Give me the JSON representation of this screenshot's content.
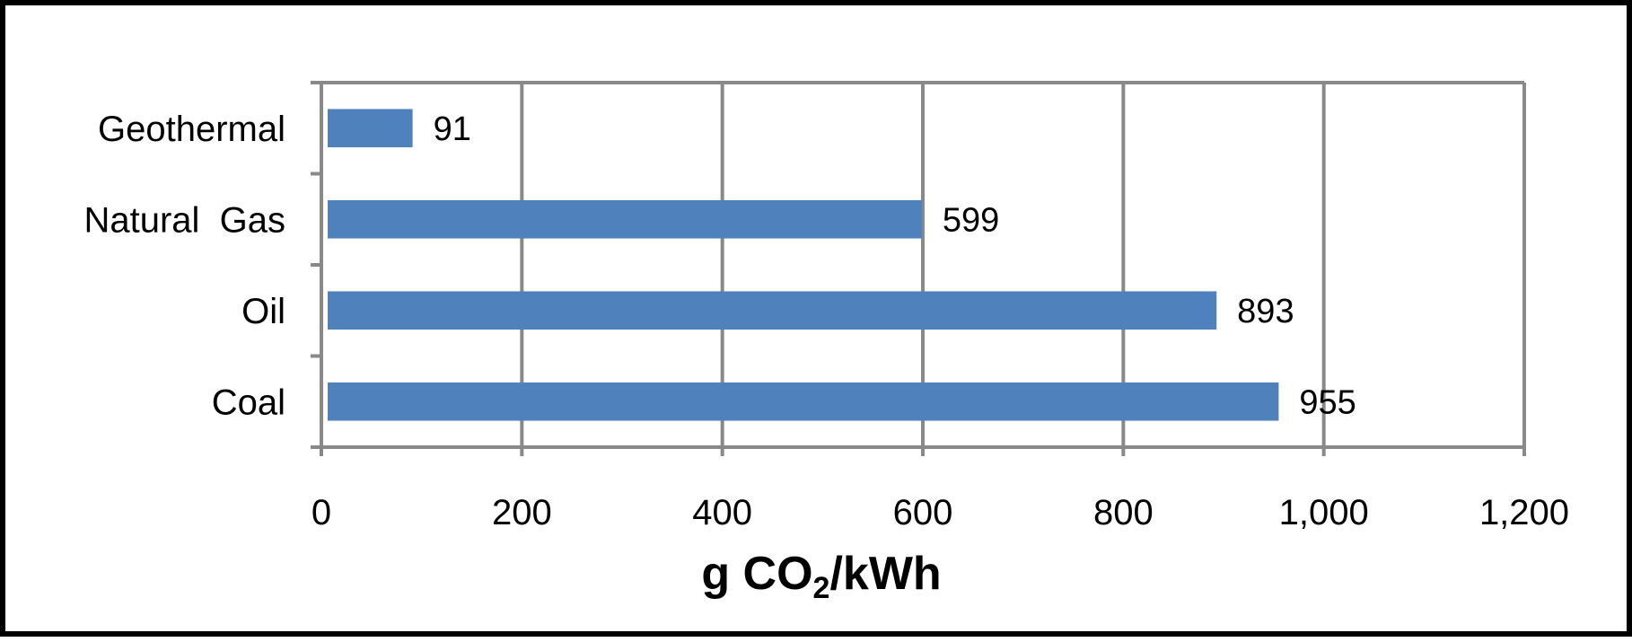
{
  "chart_data": {
    "type": "bar",
    "orientation": "horizontal",
    "categories": [
      "Geothermal",
      "Natural  Gas",
      "Oil",
      "Coal"
    ],
    "values": [
      91,
      599,
      893,
      955
    ],
    "data_labels": [
      "91",
      "599",
      "893",
      "955"
    ],
    "xlabel": {
      "main": "g CO",
      "subscript": "2",
      "rest": "/kWh"
    },
    "x_ticks": [
      "0",
      "200",
      "400",
      "600",
      "800",
      "1,000",
      "1,200"
    ],
    "xlim": [
      0,
      1200
    ],
    "grid": true,
    "legend": "none",
    "colors": {
      "bar": "#4f81bd",
      "grid": "#898989",
      "frame": "#000000"
    }
  }
}
